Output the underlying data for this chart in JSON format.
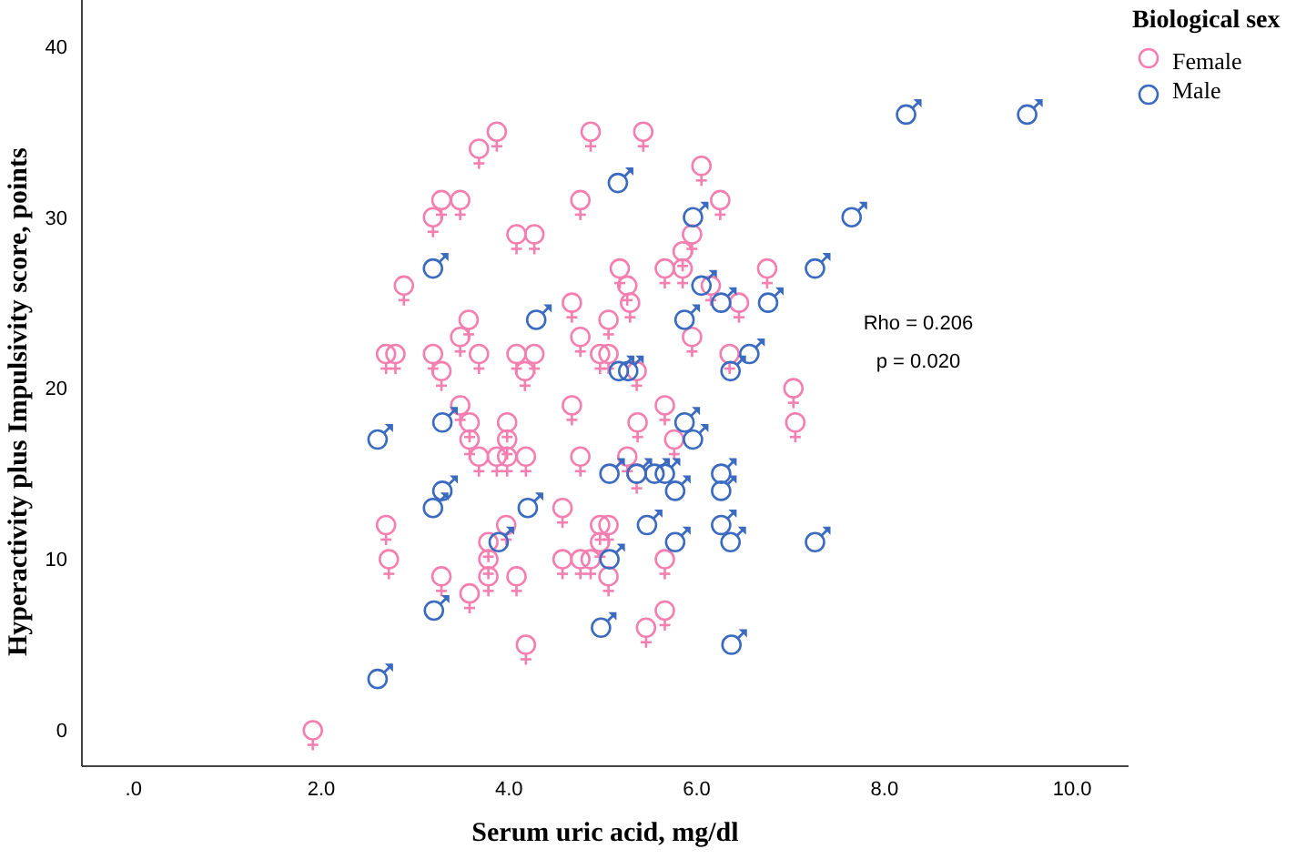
{
  "chart_data": {
    "type": "scatter",
    "xlabel": "Serum uric acid, mg/dl",
    "ylabel": "Hyperactivity plus Impulsivity score, points",
    "legend_title": "Biological sex",
    "legend": "top right",
    "grid": false,
    "annotations": [
      "Rho = 0.206",
      "p = 0.020"
    ],
    "xlim": [
      -0.55,
      10.6
    ],
    "xticks": [
      {
        "value": 0,
        "label": ".0"
      },
      {
        "value": 2,
        "label": "2.0"
      },
      {
        "value": 4,
        "label": "4.0"
      },
      {
        "value": 6,
        "label": "6.0"
      },
      {
        "value": 8,
        "label": "8.0"
      },
      {
        "value": 10,
        "label": "10.0"
      }
    ],
    "ylim": [
      -2.1,
      42.7
    ],
    "yticks": [
      0,
      10,
      20,
      30,
      40
    ],
    "series": [
      {
        "name": "Female",
        "color": "#f47fb0",
        "marker": "circle",
        "x": [
          3.87,
          3.68,
          4.87,
          5.43,
          6.05,
          3.28,
          3.48,
          3.19,
          4.76,
          6.25,
          4.08,
          4.27,
          5.95,
          5.85,
          2.88,
          5.18,
          5.66,
          5.85,
          6.75,
          5.26,
          6.15,
          5.29,
          6.45,
          4.67,
          3.57,
          5.06,
          3.48,
          4.76,
          5.95,
          2.69,
          2.79,
          3.19,
          3.68,
          4.08,
          4.27,
          4.97,
          5.06,
          6.35,
          3.28,
          4.17,
          5.36,
          7.03,
          3.48,
          4.67,
          5.66,
          3.58,
          3.98,
          5.37,
          7.05,
          3.58,
          3.98,
          5.76,
          3.68,
          3.87,
          3.98,
          4.18,
          4.76,
          5.26,
          5.36,
          2.69,
          3.97,
          4.57,
          4.97,
          5.06,
          4.97,
          3.78,
          2.72,
          3.78,
          4.57,
          4.76,
          4.87,
          5.66,
          3.28,
          3.78,
          4.08,
          5.06,
          3.58,
          5.66,
          5.46,
          4.18,
          1.91
        ],
        "values": [
          35,
          34,
          35,
          35,
          33,
          31,
          31,
          30,
          31,
          31,
          29,
          29,
          29,
          28,
          26,
          27,
          27,
          27,
          27,
          26,
          26,
          25,
          25,
          25,
          24,
          24,
          23,
          23,
          23,
          22,
          22,
          22,
          22,
          22,
          22,
          22,
          22,
          22,
          21,
          21,
          21,
          20,
          19,
          19,
          19,
          18,
          18,
          18,
          18,
          17,
          17,
          17,
          16,
          16,
          16,
          16,
          16,
          16,
          15,
          12,
          12,
          13,
          12,
          12,
          11,
          11,
          10,
          10,
          10,
          10,
          10,
          10,
          9,
          9,
          9,
          9,
          8,
          7,
          6,
          5,
          0
        ]
      },
      {
        "name": "Male",
        "color": "#3a6bc0",
        "marker": "circle",
        "x": [
          5.16,
          5.96,
          3.19,
          6.05,
          6.26,
          6.76,
          4.29,
          5.87,
          6.56,
          6.36,
          5.17,
          5.27,
          8.23,
          9.52,
          7.65,
          7.26,
          7.26,
          3.29,
          5.87,
          5.96,
          2.6,
          5.07,
          5.36,
          5.55,
          5.66,
          6.26,
          6.26,
          5.77,
          3.29,
          3.19,
          4.2,
          5.47,
          6.26,
          3.89,
          5.77,
          6.36,
          5.07,
          3.2,
          4.98,
          6.37,
          2.6
        ],
        "values": [
          32,
          30,
          27,
          26,
          25,
          25,
          24,
          24,
          22,
          21,
          21,
          21,
          36,
          36,
          30,
          27,
          11,
          18,
          18,
          17,
          17,
          15,
          15,
          15,
          15,
          15,
          14,
          14,
          14,
          13,
          13,
          12,
          12,
          11,
          11,
          11,
          10,
          7,
          6,
          5,
          3
        ]
      }
    ]
  }
}
